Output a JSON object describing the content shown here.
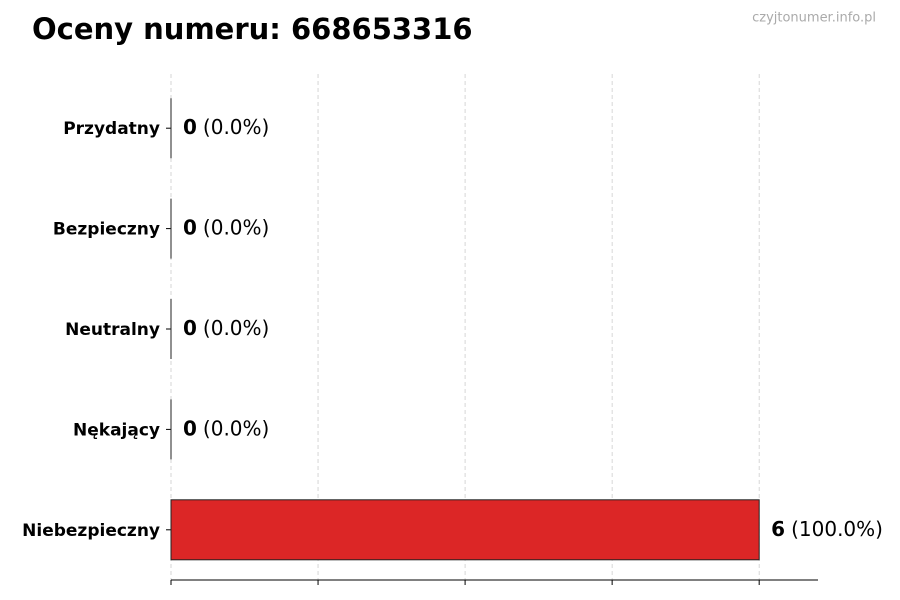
{
  "chart_data": {
    "type": "hbar",
    "title": "Oceny numeru: 668653316",
    "watermark": "czyjtonumer.info.pl",
    "categories": [
      "Przydatny",
      "Bezpieczny",
      "Neutralny",
      "Nękający",
      "Niebezpieczny"
    ],
    "values": [
      0,
      0,
      0,
      0,
      6
    ],
    "percentages": [
      0,
      0,
      0,
      0,
      100
    ],
    "percentage_labels": [
      "(0.0%)",
      "(0.0%)",
      "(0.0%)",
      "(0.0%)",
      "(100.0%)"
    ],
    "color": "#dc2626",
    "xlim": [
      0,
      6.6
    ],
    "xticks": [
      0,
      1.5,
      3,
      4.5,
      6
    ],
    "grid": true
  }
}
